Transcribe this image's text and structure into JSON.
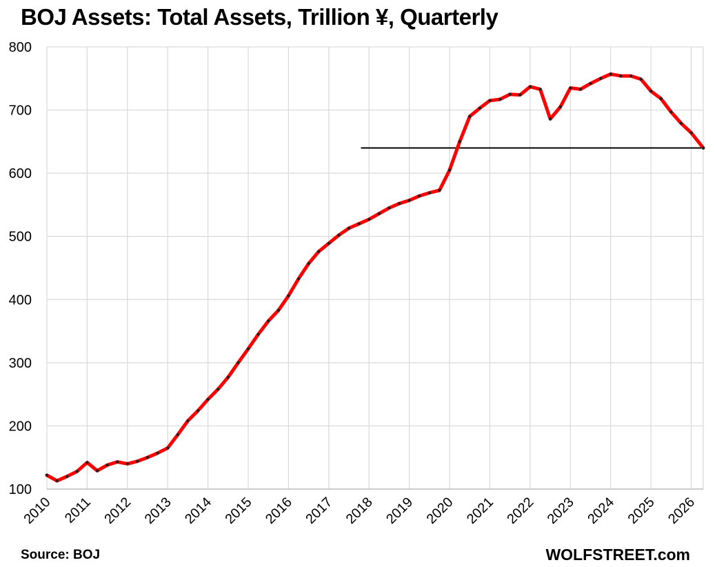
{
  "header": {
    "title": "BOJ Assets: Total Assets, Trillion ¥, Quarterly"
  },
  "footer": {
    "source": "Source: BOJ",
    "brand": "WOLFSTREET.com"
  },
  "colors": {
    "series": "#ff0000",
    "marker": "#222222",
    "reference_line": "#000000",
    "grid": "#d9d9d9"
  },
  "chart_data": {
    "type": "line",
    "title": "BOJ Assets: Total Assets, Trillion ¥, Quarterly",
    "xlabel": "",
    "ylabel": "",
    "ylim": [
      100,
      800
    ],
    "xlim": [
      2010,
      2026.3
    ],
    "yticks": [
      100,
      200,
      300,
      400,
      500,
      600,
      700,
      800
    ],
    "xticks": [
      "2010",
      "2011",
      "2012",
      "2013",
      "2014",
      "2015",
      "2016",
      "2017",
      "2018",
      "2019",
      "2020",
      "2021",
      "2022",
      "2023",
      "2024",
      "2025",
      "2026"
    ],
    "grid": true,
    "series": [
      {
        "x": [
          2010.0,
          2010.25,
          2010.5,
          2010.75,
          2011.0,
          2011.25,
          2011.5,
          2011.75,
          2012.0,
          2012.25,
          2012.5,
          2012.75,
          2013.0,
          2013.25,
          2013.5,
          2013.75,
          2014.0,
          2014.25,
          2014.5,
          2014.75,
          2015.0,
          2015.25,
          2015.5,
          2015.75,
          2016.0,
          2016.25,
          2016.5,
          2016.75,
          2017.0,
          2017.25,
          2017.5,
          2017.75,
          2018.0,
          2018.25,
          2018.5,
          2018.75,
          2019.0,
          2019.25,
          2019.5,
          2019.75,
          2020.0,
          2020.25,
          2020.5,
          2020.75,
          2021.0,
          2021.25,
          2021.5,
          2021.75,
          2022.0,
          2022.25,
          2022.5,
          2022.75,
          2023.0,
          2023.25,
          2023.5,
          2023.75,
          2024.0,
          2024.25,
          2024.5,
          2024.75,
          2025.0,
          2025.25,
          2025.5,
          2025.75,
          2026.0,
          2026.3
        ],
        "values": [
          122,
          113,
          120,
          128,
          142,
          129,
          138,
          143,
          140,
          144,
          150,
          157,
          165,
          186,
          208,
          224,
          242,
          258,
          277,
          300,
          322,
          345,
          366,
          383,
          406,
          433,
          457,
          476,
          489,
          502,
          513,
          520,
          527,
          536,
          545,
          552,
          557,
          564,
          569,
          573,
          605,
          650,
          690,
          703,
          715,
          717,
          725,
          724,
          737,
          733,
          686,
          705,
          735,
          733,
          742,
          750,
          757,
          754,
          754,
          749,
          730,
          718,
          697,
          679,
          664,
          640
        ]
      }
    ],
    "reference_line": {
      "y": 640,
      "x_start": 2017.8,
      "x_end": 2026.3
    }
  }
}
